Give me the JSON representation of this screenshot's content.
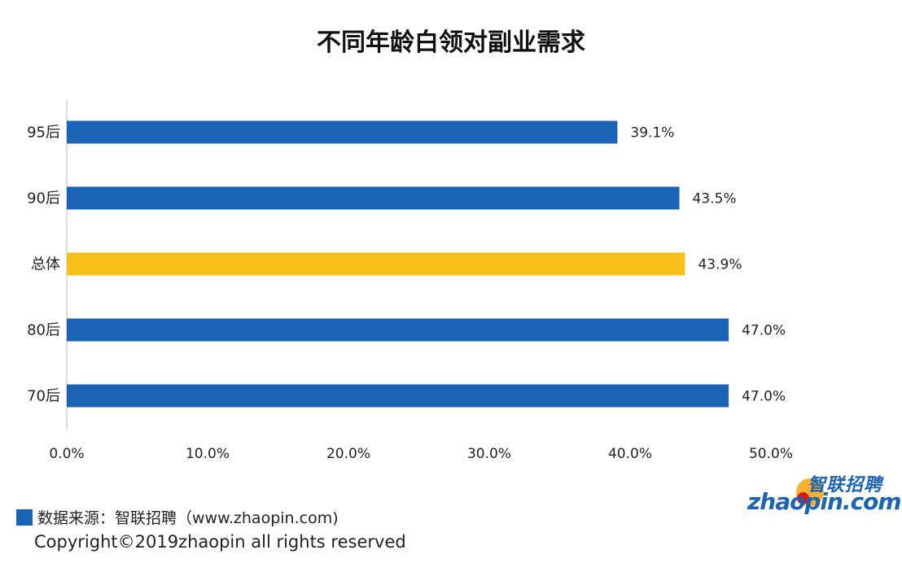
{
  "chart_data": {
    "type": "bar",
    "orientation": "horizontal",
    "title": "不同年龄白领对副业需求",
    "categories": [
      "95后",
      "90后",
      "总体",
      "80后",
      "70后"
    ],
    "values": [
      39.1,
      43.5,
      43.9,
      47.0,
      47.0
    ],
    "value_labels": [
      "39.1%",
      "43.5%",
      "43.9%",
      "47.0%",
      "47.0%"
    ],
    "highlight_category": "总体",
    "xlim": [
      0,
      50
    ],
    "xticks": [
      "0.0%",
      "10.0%",
      "20.0%",
      "30.0%",
      "40.0%",
      "50.0%"
    ],
    "xlabel": "",
    "ylabel": "",
    "grid": false,
    "colors": {
      "bar": "#1a63b5",
      "highlight": "#f9c01a"
    }
  },
  "footer": {
    "source": "数据来源：智联招聘（www.zhaopin.com)",
    "copyright": "Copyright©2019zhaopin all rights reserved"
  },
  "logo": {
    "chinese": "智联招聘",
    "english": "zhaopin.com"
  }
}
